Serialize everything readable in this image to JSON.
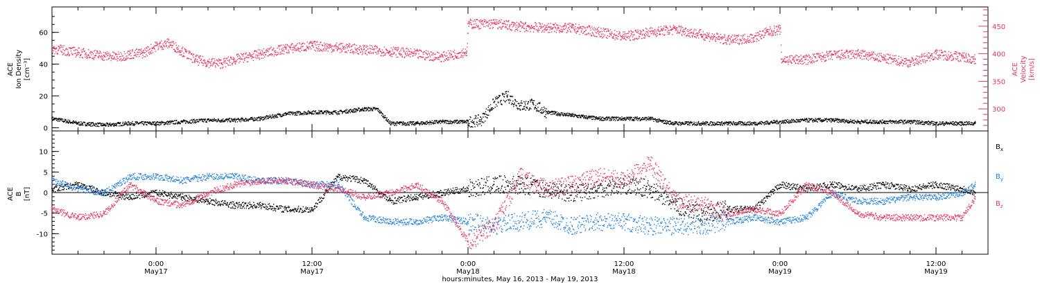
{
  "colors": {
    "black": "#000000",
    "pink": "#e8325f",
    "blue": "#1a7fe0"
  },
  "x_axis": {
    "title": "hours:minutes, May 16, 2013 - May 19, 2013",
    "range_hours": [
      -8,
      64
    ],
    "major_ticks": [
      {
        "hour": 0,
        "time": "0:00",
        "day": "May17"
      },
      {
        "hour": 12,
        "time": "12:00",
        "day": "May17"
      },
      {
        "hour": 24,
        "time": "0:00",
        "day": "May18"
      },
      {
        "hour": 36,
        "time": "12:00",
        "day": "May18"
      },
      {
        "hour": 48,
        "time": "0:00",
        "day": "May19"
      },
      {
        "hour": 60,
        "time": "12:00",
        "day": "May19"
      }
    ]
  },
  "chart_data": [
    {
      "type": "scatter",
      "panel": "top",
      "left_axis": {
        "label_lines": [
          "ACE",
          "Ion Density",
          "[cm⁻³]"
        ],
        "ylim": [
          -2,
          76
        ],
        "ticks": [
          0,
          20,
          40,
          60
        ]
      },
      "right_axis": {
        "label_lines": [
          "ACE",
          "Velocity",
          "[km/s]"
        ],
        "ylim": [
          260,
          485
        ],
        "ticks": [
          300,
          350,
          400,
          450
        ]
      },
      "series": [
        {
          "name": "Ion Density",
          "axis": "left",
          "color": "#000000",
          "x": [
            -8,
            -6,
            -4,
            -2,
            0,
            2,
            4,
            6,
            8,
            10,
            12,
            14,
            16,
            17,
            18,
            20,
            22,
            24,
            25,
            26,
            27,
            28,
            29,
            30,
            32,
            34,
            36,
            38,
            39,
            40,
            42,
            44,
            46,
            48,
            50,
            52,
            54,
            56,
            58,
            60,
            62,
            63
          ],
          "y": [
            6,
            3,
            2,
            3,
            3,
            4,
            5,
            5,
            6,
            9,
            10,
            10,
            12,
            12,
            3,
            3,
            4,
            4,
            5,
            16,
            20,
            14,
            15,
            10,
            8,
            6,
            6,
            6,
            4,
            3,
            3,
            3,
            3,
            4,
            5,
            5,
            4,
            4,
            4,
            3,
            3,
            3
          ]
        },
        {
          "name": "Velocity",
          "axis": "right",
          "color": "#e8325f",
          "x": [
            -8,
            -6,
            -4,
            -3,
            -2,
            -1,
            0,
            1,
            2,
            3,
            4,
            5,
            6,
            8,
            10,
            12,
            14,
            16,
            18,
            20,
            22,
            23.9,
            24,
            26,
            28,
            30,
            32,
            34,
            36,
            38,
            40,
            42,
            44,
            46,
            47,
            48,
            48.1,
            50,
            52,
            54,
            56,
            58,
            60,
            62,
            63
          ],
          "y": [
            410,
            403,
            397,
            395,
            400,
            402,
            415,
            420,
            405,
            390,
            385,
            383,
            390,
            400,
            410,
            415,
            412,
            408,
            405,
            400,
            395,
            405,
            455,
            455,
            450,
            448,
            447,
            440,
            432,
            440,
            445,
            435,
            425,
            430,
            440,
            445,
            390,
            390,
            398,
            400,
            392,
            385,
            400,
            395,
            390
          ]
        }
      ]
    },
    {
      "type": "scatter",
      "panel": "bottom",
      "left_axis": {
        "label_lines": [
          "ACE",
          "B",
          "[nT]"
        ],
        "ylim": [
          -15,
          15
        ],
        "ticks": [
          -10,
          -5,
          0,
          5,
          10
        ]
      },
      "legend": {
        "placement": "right",
        "entries": [
          {
            "name": "B",
            "sub": "x",
            "color": "#000000"
          },
          {
            "name": "B",
            "sub": "y",
            "color": "#1a7fe0"
          },
          {
            "name": "B",
            "sub": "z",
            "color": "#e8325f"
          }
        ]
      },
      "series": [
        {
          "name": "Bx",
          "color": "#000000",
          "x": [
            -8,
            -6,
            -4,
            -2,
            0,
            2,
            4,
            6,
            8,
            10,
            12,
            14,
            16,
            18,
            20,
            22,
            24,
            26,
            28,
            30,
            32,
            34,
            36,
            38,
            40,
            42,
            44,
            46,
            48,
            50,
            52,
            54,
            56,
            58,
            60,
            62,
            63
          ],
          "y": [
            1,
            2,
            0,
            -1,
            0,
            -1,
            -2,
            -3,
            -3,
            -4,
            -4,
            4,
            3,
            -2,
            -1,
            0,
            1,
            2,
            2,
            1,
            0,
            1,
            2,
            1,
            -3,
            -5,
            -4,
            -4,
            2,
            1,
            2,
            1,
            2,
            1,
            2,
            1,
            0
          ]
        },
        {
          "name": "By",
          "color": "#1a7fe0",
          "x": [
            -8,
            -6,
            -4,
            -2,
            0,
            2,
            4,
            6,
            8,
            10,
            12,
            14,
            16,
            18,
            20,
            22,
            24,
            26,
            28,
            30,
            32,
            34,
            36,
            38,
            40,
            42,
            44,
            46,
            48,
            50,
            52,
            54,
            56,
            58,
            60,
            62,
            63
          ],
          "y": [
            3,
            1,
            0,
            4,
            4,
            3,
            4,
            4,
            3,
            3,
            2,
            2,
            -6,
            -7,
            -7,
            -6,
            -7,
            -8,
            -7,
            -6,
            -8,
            -7,
            -7,
            -8,
            -8,
            -8,
            -7,
            -6,
            -7,
            -6,
            0,
            -2,
            -2,
            -1,
            -1,
            0,
            2
          ]
        },
        {
          "name": "Bz",
          "color": "#e8325f",
          "x": [
            -8,
            -6,
            -4,
            -2,
            0,
            2,
            4,
            6,
            8,
            10,
            12,
            14,
            16,
            18,
            20,
            22,
            24,
            26,
            28,
            30,
            32,
            34,
            36,
            38,
            40,
            42,
            44,
            46,
            48,
            50,
            52,
            54,
            56,
            58,
            60,
            62,
            63
          ],
          "y": [
            -4,
            -6,
            -5,
            2,
            -2,
            -3,
            0,
            2,
            3,
            3,
            2,
            1,
            -1,
            0,
            2,
            -2,
            -12,
            -8,
            4,
            1,
            2,
            4,
            3,
            7,
            -2,
            -3,
            -5,
            -4,
            -5,
            2,
            0,
            -5,
            -6,
            -6,
            -6,
            -6,
            -1
          ]
        }
      ]
    }
  ]
}
